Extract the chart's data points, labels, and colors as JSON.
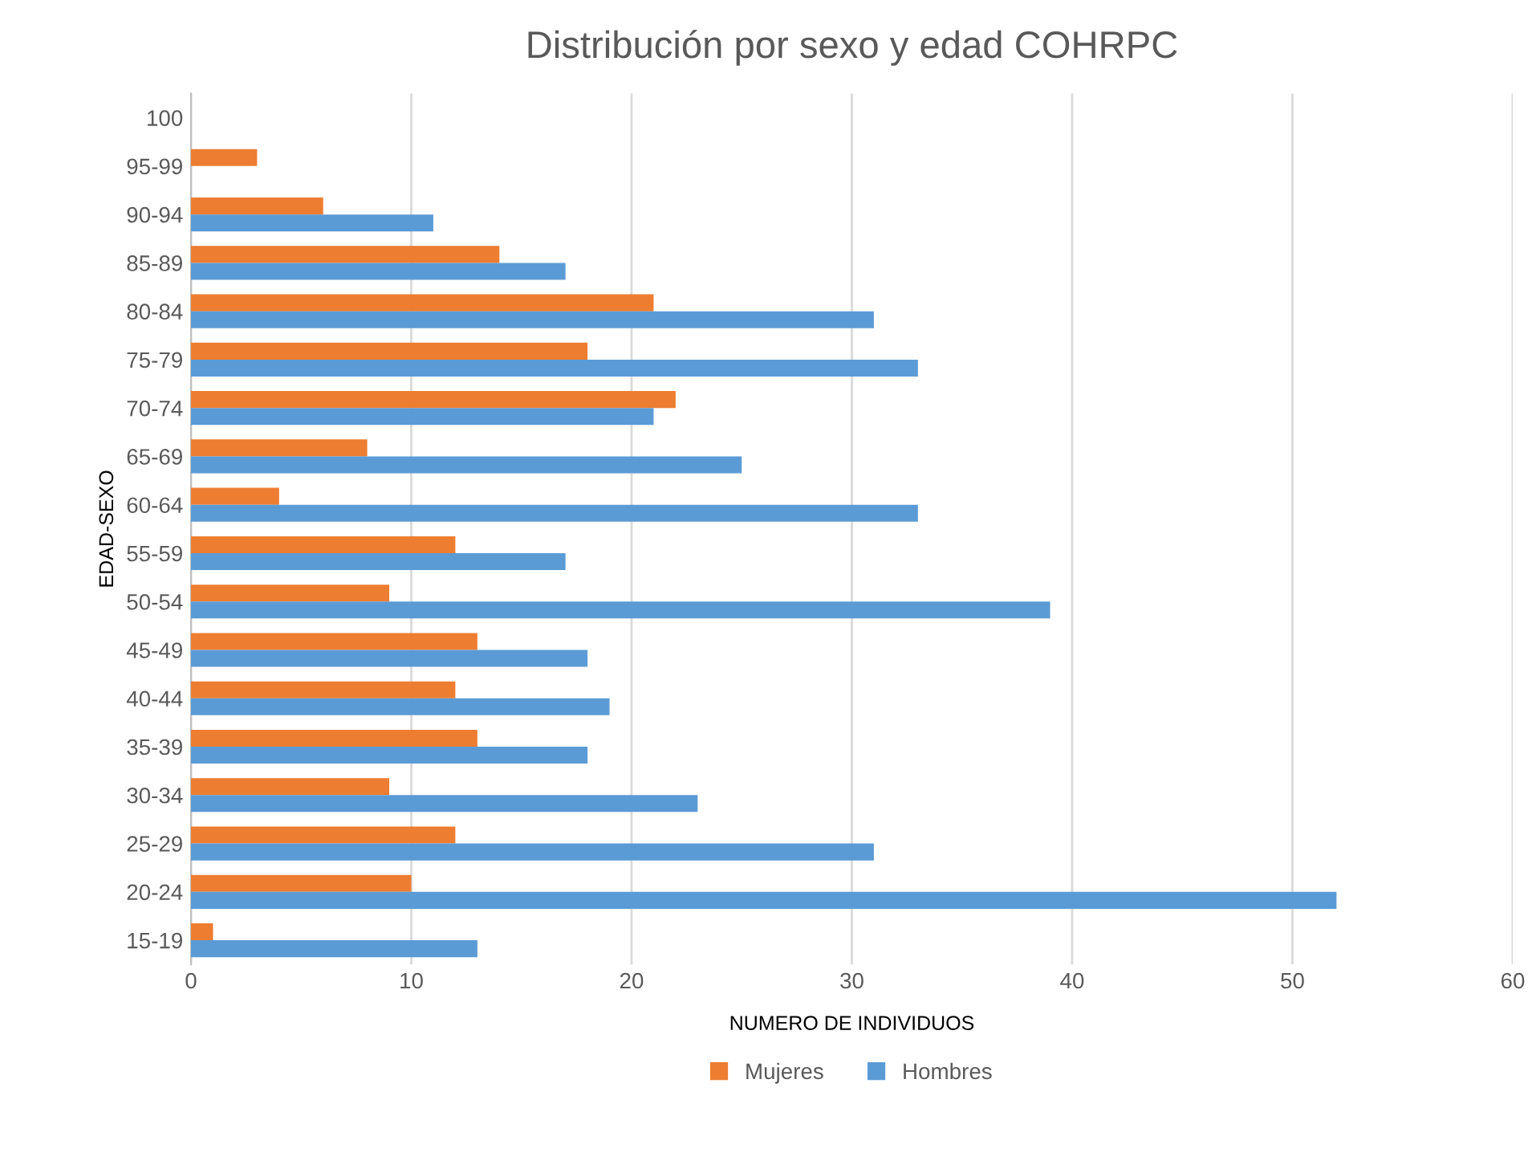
{
  "chart_data": {
    "type": "bar",
    "orientation": "horizontal",
    "title": "Distribución por sexo y edad COHRPC",
    "xlabel": "NUMERO DE INDIVIDUOS",
    "ylabel": "EDAD-SEXO",
    "categories": [
      "100",
      "95-99",
      "90-94",
      "85-89",
      "80-84",
      "75-79",
      "70-74",
      "65-69",
      "60-64",
      "55-59",
      "50-54",
      "45-49",
      "40-44",
      "35-39",
      "30-34",
      "25-29",
      "20-24",
      "15-19"
    ],
    "series": [
      {
        "name": "Mujeres",
        "color": "#ed7d31",
        "values": [
          0,
          3,
          6,
          14,
          21,
          18,
          22,
          8,
          4,
          12,
          9,
          13,
          12,
          13,
          9,
          12,
          10,
          1
        ]
      },
      {
        "name": "Hombres",
        "color": "#5b9bd5",
        "values": [
          0,
          0,
          11,
          17,
          31,
          33,
          21,
          25,
          33,
          17,
          39,
          18,
          19,
          18,
          23,
          31,
          52,
          13
        ]
      }
    ],
    "xlim": [
      0,
      60
    ],
    "xticks": [
      0,
      10,
      20,
      30,
      40,
      50,
      60
    ],
    "grid": "x",
    "legend": "bottom"
  }
}
